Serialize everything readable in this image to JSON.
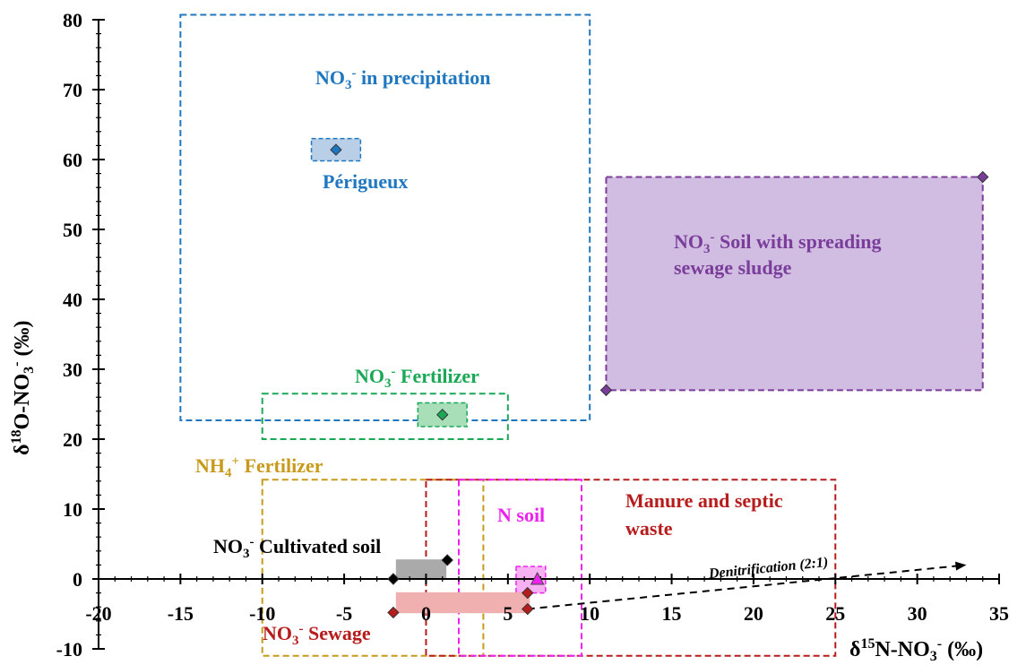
{
  "chart_data": {
    "type": "scatter",
    "xlabel": {
      "main": "δ",
      "sup1": "15",
      "rest": "N-NO",
      "sub": "3",
      "sup2": "-",
      "unit": " (‰)"
    },
    "ylabel": {
      "main": "δ",
      "sup1": "18",
      "rest": "O-NO",
      "sub": "3",
      "sup2": "-",
      "unit": " (‰)"
    },
    "xlim": [
      -20,
      35
    ],
    "ylim": [
      -10,
      80
    ],
    "x_ticks": [
      "-20",
      "-15",
      "-10",
      "-5",
      "0",
      "5",
      "10",
      "15",
      "20",
      "25",
      "30",
      "35"
    ],
    "y_ticks": [
      "-10",
      "0",
      "10",
      "20",
      "30",
      "40",
      "50",
      "60",
      "70",
      "80"
    ],
    "colors": {
      "precip": "#1f77c0",
      "fertilizer_no3": "#19a855",
      "soil_sludge": "#7a3d9a",
      "soil_sludge_fill": "#d1bde2",
      "nh4": "#c89a1c",
      "manure": "#b71c1c",
      "nsoil": "#ee22ee",
      "cultivated": "#000000"
    },
    "source_boxes": [
      {
        "name": "precipitation",
        "x": [
          -15,
          10
        ],
        "y": [
          22.7,
          80.7
        ],
        "color": "#1f77c0",
        "fill": "none"
      },
      {
        "name": "no3-fertilizer",
        "x": [
          -10,
          5
        ],
        "y": [
          20,
          26.5
        ],
        "color": "#19a855",
        "fill": "none"
      },
      {
        "name": "nh4-fertilizer",
        "x": [
          -10,
          3.5
        ],
        "y": [
          -11,
          14.2
        ],
        "color": "#c89a1c",
        "fill": "none"
      },
      {
        "name": "manure-septic",
        "x": [
          0,
          25
        ],
        "y": [
          -11,
          14.2
        ],
        "color": "#b71c1c",
        "fill": "none"
      },
      {
        "name": "n-soil",
        "x": [
          2,
          9.5
        ],
        "y": [
          -11,
          14.2
        ],
        "color": "#ee22ee",
        "fill": "none"
      },
      {
        "name": "soil-sludge",
        "x": [
          11,
          34
        ],
        "y": [
          27,
          57.5
        ],
        "color": "#7a3d9a",
        "fill": "#d1bde2"
      }
    ],
    "measured_ranges": [
      {
        "name": "perigueux",
        "x": [
          -7,
          -4
        ],
        "y": [
          59.8,
          63
        ],
        "fill": "#b9cfe8",
        "stroke": "#1f77c0",
        "dashed": true
      },
      {
        "name": "no3-fertilizer-measured",
        "x": [
          -0.5,
          2.5
        ],
        "y": [
          21.8,
          25.2
        ],
        "fill": "#a9dfb8",
        "stroke": "#19a855",
        "dashed": true
      },
      {
        "name": "n-soil-measured",
        "x": [
          5.5,
          7.3
        ],
        "y": [
          -2,
          1.8
        ],
        "fill": "#f7b0f2",
        "stroke": "#ee22ee",
        "dashed": true
      },
      {
        "name": "cultivated-soil",
        "x": [
          -1.8,
          1.2
        ],
        "y": [
          0,
          2.7
        ],
        "fill": "#aaaaaa",
        "stroke": "#aaaaaa",
        "dashed": false
      },
      {
        "name": "sewage",
        "x": [
          -1.8,
          6.3
        ],
        "y": [
          -4.8,
          -2
        ],
        "fill": "#f0b0b0",
        "stroke": "#f0b0b0",
        "dashed": false
      }
    ],
    "series": [
      {
        "name": "precipitation",
        "marker": "diamond",
        "color": "#1f77c0",
        "points": [
          [
            -5.5,
            61.4
          ]
        ]
      },
      {
        "name": "no3-fertilizer",
        "marker": "diamond",
        "color": "#19a855",
        "points": [
          [
            1,
            23.5
          ]
        ]
      },
      {
        "name": "soil-sludge",
        "marker": "diamond",
        "color": "#7a3d9a",
        "points": [
          [
            11,
            27
          ],
          [
            34,
            57.5
          ]
        ]
      },
      {
        "name": "cultivated-soil",
        "marker": "diamond",
        "color": "#000000",
        "points": [
          [
            -2,
            0
          ],
          [
            1.3,
            2.7
          ]
        ]
      },
      {
        "name": "sewage",
        "marker": "diamond",
        "color": "#b71c1c",
        "points": [
          [
            -2,
            -4.8
          ],
          [
            6.2,
            -4.3
          ],
          [
            6.2,
            -2
          ]
        ]
      },
      {
        "name": "n-soil",
        "marker": "triangle",
        "color": "#ee22ee",
        "points": [
          [
            6.8,
            0
          ]
        ]
      }
    ],
    "denitrification": {
      "label": "Denitrification (2:1)",
      "from": [
        6.2,
        -4.3
      ],
      "to": [
        33,
        2
      ]
    },
    "annotations": {
      "precip": {
        "pre": "NO",
        "sub": "3",
        "sup": "-",
        "post": " in precipitation"
      },
      "perigueux": "Périgueux",
      "sludge_line1": {
        "pre": "NO",
        "sub": "3",
        "sup": "-",
        "post": " Soil with spreading"
      },
      "sludge_line2": "sewage sludge",
      "fert": {
        "pre": "NO",
        "sub": "3",
        "sup": "-",
        "post": " Fertilizer"
      },
      "nh4": {
        "pre": "NH",
        "sub": "4",
        "sup": "+",
        "post": " Fertilizer"
      },
      "nsoil": "N soil",
      "manure_line1": "Manure and septic",
      "manure_line2": "waste",
      "cultivated": {
        "pre": "NO",
        "sub": "3",
        "sup": "-",
        "post": " Cultivated soil"
      },
      "sewage": {
        "pre": "NO",
        "sub": "3",
        "sup": "-",
        "post": " Sewage"
      }
    }
  }
}
